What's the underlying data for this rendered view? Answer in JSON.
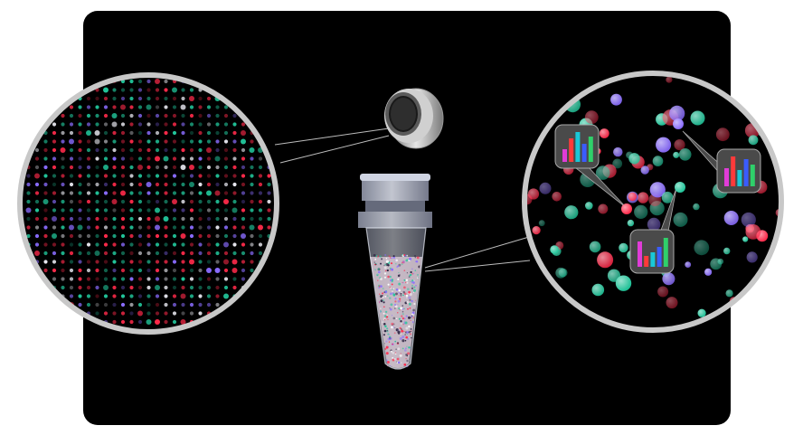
{
  "palette": {
    "panel": "#000000",
    "lens_ring": "#c8c8c8",
    "connector": "#bcbcbc",
    "bead_red": "#ff2a4a",
    "bead_green": "#21c59a",
    "bead_purple": "#8a6cff",
    "bead_white": "#e8e8f0",
    "callout_box": "#4a4a4a",
    "callout_bar_blue": "#3a5cff",
    "callout_bar_green": "#2fd06a",
    "callout_bar_magenta": "#e03cd8",
    "callout_bar_red": "#ff3a3a",
    "callout_bar_cyan": "#19c8d8"
  },
  "icons": {
    "left_lens": "bead-array-magnified-icon",
    "right_lens": "bead-suspension-magnified-icon",
    "chip": "bead-chip-icon",
    "tube": "sample-tube-icon",
    "callout": "bar-histogram-callout-icon"
  }
}
